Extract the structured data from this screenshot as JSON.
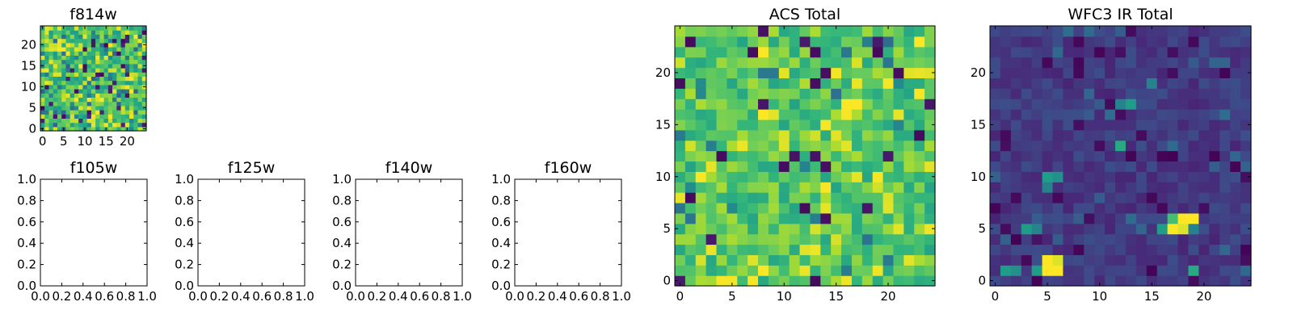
{
  "chart_data": [
    {
      "type": "heatmap",
      "title": "f814w",
      "grid": false,
      "xlim": [
        -0.5,
        24.5
      ],
      "ylim": [
        -0.5,
        24.5
      ],
      "xticks": [
        "0",
        "5",
        "10",
        "15",
        "20"
      ],
      "yticks": [
        "0",
        "5",
        "10",
        "15",
        "20"
      ],
      "colormap": "viridis",
      "values_note": "25x25 pixel map with dense speckle of mostly green/yellow-green values"
    },
    {
      "type": "line",
      "title": "f105w",
      "grid": false,
      "xlim": [
        0.0,
        1.0
      ],
      "ylim": [
        0.0,
        1.0
      ],
      "xticks": [
        "0.0",
        "0.2",
        "0.4",
        "0.6",
        "0.8",
        "1.0"
      ],
      "yticks": [
        "0.0",
        "0.2",
        "0.4",
        "0.6",
        "0.8",
        "1.0"
      ],
      "series": []
    },
    {
      "type": "line",
      "title": "f125w",
      "grid": false,
      "xlim": [
        0.0,
        1.0
      ],
      "ylim": [
        0.0,
        1.0
      ],
      "xticks": [
        "0.0",
        "0.2",
        "0.4",
        "0.6",
        "0.8",
        "1.0"
      ],
      "yticks": [
        "0.0",
        "0.2",
        "0.4",
        "0.6",
        "0.8",
        "1.0"
      ],
      "series": []
    },
    {
      "type": "line",
      "title": "f140w",
      "grid": false,
      "xlim": [
        0.0,
        1.0
      ],
      "ylim": [
        0.0,
        1.0
      ],
      "xticks": [
        "0.0",
        "0.2",
        "0.4",
        "0.6",
        "0.8",
        "1.0"
      ],
      "yticks": [
        "0.0",
        "0.2",
        "0.4",
        "0.6",
        "0.8",
        "1.0"
      ],
      "series": []
    },
    {
      "type": "line",
      "title": "f160w",
      "grid": false,
      "xlim": [
        0.0,
        1.0
      ],
      "ylim": [
        0.0,
        1.0
      ],
      "xticks": [
        "0.0",
        "0.2",
        "0.4",
        "0.6",
        "0.8",
        "1.0"
      ],
      "yticks": [
        "0.0",
        "0.2",
        "0.4",
        "0.6",
        "0.8",
        "1.0"
      ],
      "series": []
    },
    {
      "type": "heatmap",
      "title": "ACS Total",
      "grid": false,
      "xlim": [
        -0.5,
        24.5
      ],
      "ylim": [
        -0.5,
        24.5
      ],
      "xticks": [
        "0",
        "5",
        "10",
        "15",
        "20"
      ],
      "yticks": [
        "0",
        "5",
        "10",
        "15",
        "20"
      ],
      "colormap": "viridis",
      "values_note": "25x25 noise map, mostly green/yellow-green with scattered dark purple and bright yellow pixels"
    },
    {
      "type": "heatmap",
      "title": "WFC3 IR Total",
      "grid": false,
      "xlim": [
        -0.5,
        24.5
      ],
      "ylim": [
        -0.5,
        24.5
      ],
      "xticks": [
        "0",
        "5",
        "10",
        "15",
        "20"
      ],
      "yticks": [
        "0",
        "5",
        "10",
        "15",
        "20"
      ],
      "colormap": "viridis",
      "values_note": "25x25 map, mostly dark blue/purple with bright yellow blobs near (5,1) and (17,5), green spots near (5,10), (12,13), (13,17), (3,5)"
    }
  ]
}
